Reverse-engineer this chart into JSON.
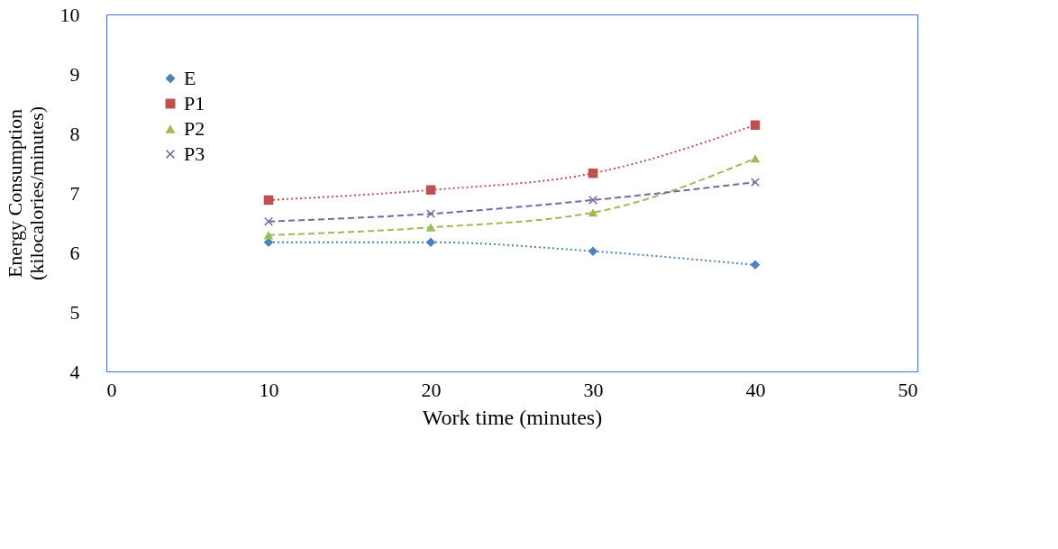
{
  "chart_data": {
    "type": "line",
    "xlabel": "Work time (minutes)",
    "ylabel": "Energy Consumption\n(kilocalories/minutes)",
    "x": [
      10,
      20,
      30,
      40
    ],
    "series": [
      {
        "name": "E",
        "color": "#4f81bd",
        "values": [
          6.17,
          6.17,
          6.02,
          5.79
        ],
        "marker": "diamond",
        "line_style": "dotted"
      },
      {
        "name": "P1",
        "color": "#c0504d",
        "values": [
          6.88,
          7.05,
          7.33,
          8.14
        ],
        "marker": "square",
        "line_style": "dotted"
      },
      {
        "name": "P2",
        "color": "#9bbb59",
        "values": [
          6.29,
          6.42,
          6.67,
          7.58
        ],
        "marker": "triangle",
        "line_style": "dashed"
      },
      {
        "name": "P3",
        "color": "#8064a2",
        "values": [
          6.52,
          6.65,
          6.88,
          7.18
        ],
        "marker": "cross",
        "line_style": "dashed"
      }
    ],
    "xlim": [
      0,
      50
    ],
    "xticks": [
      0,
      10,
      20,
      30,
      40,
      50
    ],
    "ylim": [
      4,
      10
    ],
    "yticks": [
      4,
      5,
      6,
      7,
      8,
      9,
      10
    ],
    "grid": false,
    "legend": "top left"
  }
}
